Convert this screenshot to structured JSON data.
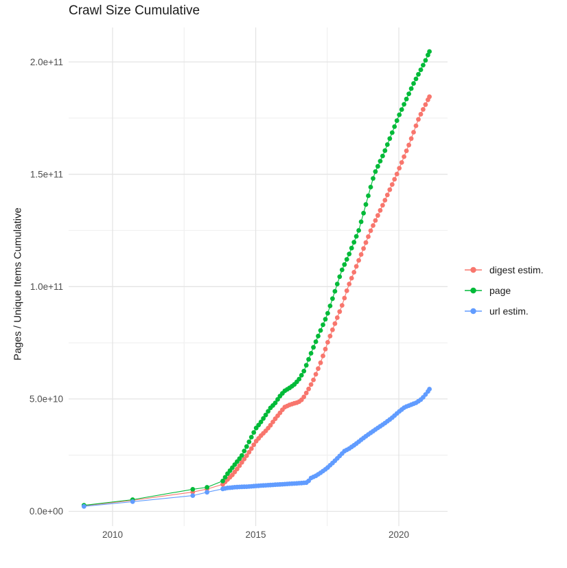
{
  "title": "Crawl Size Cumulative",
  "axes": {
    "y_label": "Pages / Unique Items Cumulative",
    "x_tick_labels": [
      "2010",
      "2015",
      "2020"
    ],
    "y_tick_labels": [
      "0.0e+00",
      "5.0e+10",
      "1.0e+11",
      "1.5e+11",
      "2.0e+11"
    ]
  },
  "legend": {
    "position": "right",
    "items": [
      {
        "label": "digest estim.",
        "color": "#F8766D"
      },
      {
        "label": "page",
        "color": "#00BA38"
      },
      {
        "label": "url estim.",
        "color": "#619CFF"
      }
    ]
  },
  "colors": {
    "background": "#ffffff",
    "grid_major": "#e4e4e4",
    "grid_minor": "#f1f1f1",
    "tick_text": "#4d4d4d",
    "title_text": "#1a1a1a"
  },
  "chart_data": {
    "type": "scatter",
    "title": "Crawl Size Cumulative",
    "xlabel": "",
    "ylabel": "Pages / Unique Items Cumulative",
    "values_unit": "billion pages (1e9)",
    "x_axis_years": true,
    "x_range": [
      2008.9,
      2021.7
    ],
    "y_range_e9": [
      0,
      220
    ],
    "x_major_ticks": [
      2010,
      2015,
      2020
    ],
    "x_minor_ticks": [
      2012.5,
      2017.5
    ],
    "y_major_ticks_e9": [
      0,
      50,
      100,
      150,
      200
    ],
    "y_minor_ticks_e9": [
      25,
      75,
      125,
      175
    ],
    "grid": "major+minor",
    "legend_position": "right",
    "point_style": "filled dots connected by thin line, ~monthly cadence after 2014",
    "dense_from_year": 2013.85,
    "dense_step_years": 0.08333,
    "series": [
      {
        "name": "digest estim.",
        "color": "#F8766D",
        "points_year_billion": [
          [
            2009.0,
            2.5
          ],
          [
            2010.7,
            4.9
          ],
          [
            2012.8,
            8.6
          ],
          [
            2013.3,
            9.9
          ],
          [
            2013.85,
            12.0
          ],
          [
            2014.0,
            14.0
          ],
          [
            2014.17,
            16.0
          ],
          [
            2014.33,
            18.5
          ],
          [
            2014.5,
            21.5
          ],
          [
            2014.67,
            24.5
          ],
          [
            2014.83,
            27.5
          ],
          [
            2015.0,
            31.0
          ],
          [
            2015.17,
            33.5
          ],
          [
            2015.33,
            35.5
          ],
          [
            2015.5,
            38.0
          ],
          [
            2015.67,
            41.0
          ],
          [
            2015.83,
            43.5
          ],
          [
            2016.0,
            46.3
          ],
          [
            2016.17,
            47.3
          ],
          [
            2016.33,
            48.0
          ],
          [
            2016.5,
            48.6
          ],
          [
            2016.64,
            50.0
          ],
          [
            2016.83,
            54.0
          ],
          [
            2017.0,
            58.0
          ],
          [
            2017.25,
            65.5
          ],
          [
            2017.51,
            75.0
          ],
          [
            2017.75,
            83.0
          ],
          [
            2018.0,
            91.0
          ],
          [
            2018.23,
            100.0
          ],
          [
            2018.5,
            108.5
          ],
          [
            2019.02,
            125.0
          ],
          [
            2019.5,
            138.0
          ],
          [
            2019.93,
            150.0
          ],
          [
            2020.35,
            163.0
          ],
          [
            2020.7,
            175.0
          ],
          [
            2021.07,
            184.5
          ]
        ]
      },
      {
        "name": "page",
        "color": "#00BA38",
        "points_year_billion": [
          [
            2009.0,
            2.7
          ],
          [
            2010.7,
            5.2
          ],
          [
            2012.8,
            9.8
          ],
          [
            2013.3,
            10.7
          ],
          [
            2013.85,
            13.5
          ],
          [
            2014.0,
            16.5
          ],
          [
            2014.17,
            19.2
          ],
          [
            2014.33,
            21.8
          ],
          [
            2014.5,
            24.5
          ],
          [
            2014.67,
            28.5
          ],
          [
            2014.83,
            32.5
          ],
          [
            2015.0,
            36.8
          ],
          [
            2015.17,
            39.5
          ],
          [
            2015.33,
            42.5
          ],
          [
            2015.5,
            45.8
          ],
          [
            2015.67,
            48.0
          ],
          [
            2015.83,
            51.0
          ],
          [
            2016.0,
            53.5
          ],
          [
            2016.17,
            54.8
          ],
          [
            2016.33,
            56.2
          ],
          [
            2016.5,
            58.5
          ],
          [
            2016.67,
            62.0
          ],
          [
            2016.83,
            67.0
          ],
          [
            2017.0,
            72.5
          ],
          [
            2017.25,
            80.0
          ],
          [
            2017.5,
            87.5
          ],
          [
            2017.82,
            100.0
          ],
          [
            2018.0,
            107.0
          ],
          [
            2018.25,
            114.0
          ],
          [
            2018.6,
            125.0
          ],
          [
            2019.14,
            150.0
          ],
          [
            2019.5,
            160.0
          ],
          [
            2020.0,
            176.0
          ],
          [
            2020.5,
            190.0
          ],
          [
            2020.91,
            200.0
          ],
          [
            2021.07,
            204.6
          ]
        ]
      },
      {
        "name": "url estim.",
        "color": "#619CFF",
        "points_year_billion": [
          [
            2009.0,
            2.2
          ],
          [
            2010.7,
            4.3
          ],
          [
            2012.8,
            7.0
          ],
          [
            2013.3,
            8.5
          ],
          [
            2013.85,
            10.0
          ],
          [
            2014.0,
            10.4
          ],
          [
            2014.25,
            10.7
          ],
          [
            2014.5,
            10.9
          ],
          [
            2014.75,
            11.0
          ],
          [
            2015.0,
            11.3
          ],
          [
            2015.25,
            11.5
          ],
          [
            2015.5,
            11.7
          ],
          [
            2015.75,
            11.9
          ],
          [
            2016.0,
            12.1
          ],
          [
            2016.25,
            12.3
          ],
          [
            2016.5,
            12.5
          ],
          [
            2016.8,
            12.8
          ],
          [
            2016.93,
            14.8
          ],
          [
            2017.1,
            15.8
          ],
          [
            2017.25,
            17.0
          ],
          [
            2017.5,
            19.3
          ],
          [
            2017.75,
            22.3
          ],
          [
            2018.0,
            25.5
          ],
          [
            2018.1,
            26.8
          ],
          [
            2018.25,
            27.8
          ],
          [
            2018.5,
            30.0
          ],
          [
            2018.75,
            32.5
          ],
          [
            2019.0,
            34.8
          ],
          [
            2019.25,
            37.0
          ],
          [
            2019.5,
            39.1
          ],
          [
            2019.75,
            41.5
          ],
          [
            2020.0,
            44.3
          ],
          [
            2020.2,
            46.3
          ],
          [
            2020.4,
            47.3
          ],
          [
            2020.6,
            48.3
          ],
          [
            2020.8,
            50.0
          ],
          [
            2021.0,
            53.0
          ],
          [
            2021.07,
            54.4
          ]
        ]
      }
    ]
  }
}
